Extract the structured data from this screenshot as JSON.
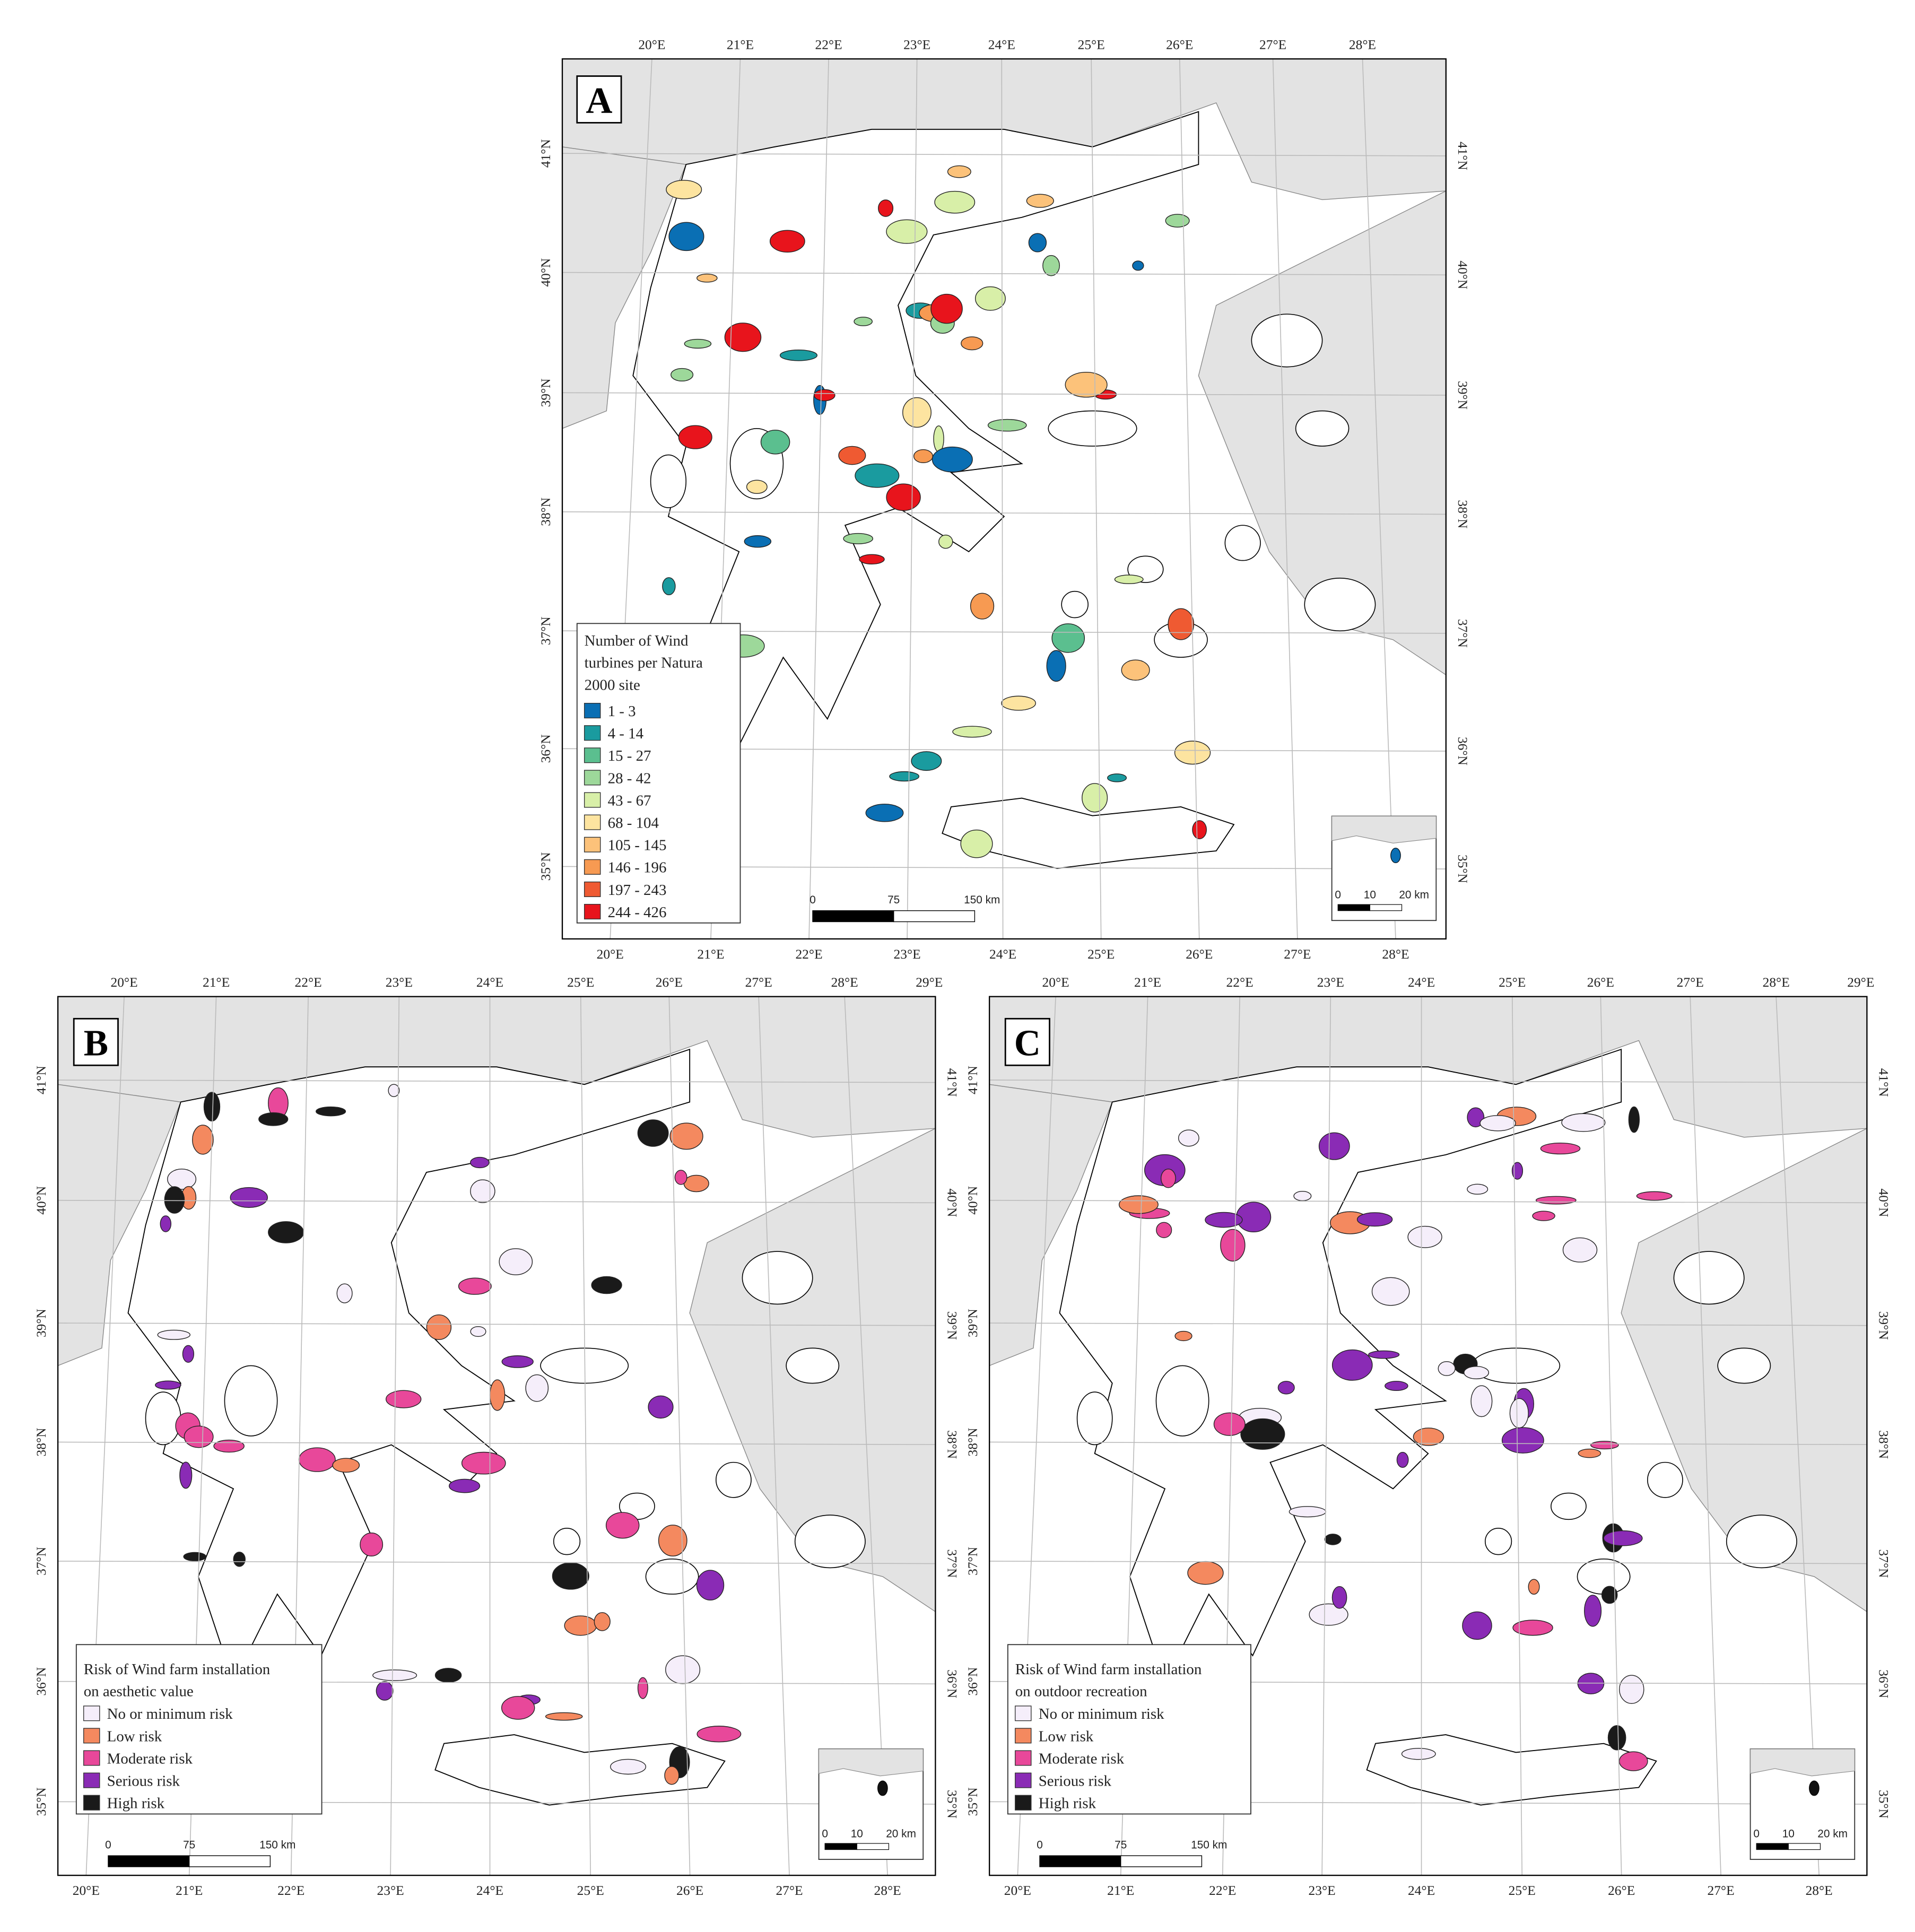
{
  "panels": [
    {
      "letter": "A",
      "top_lon_labels": [
        "20°E",
        "21°E",
        "22°E",
        "23°E",
        "24°E",
        "25°E",
        "26°E",
        "27°E",
        "28°E"
      ],
      "bottom_lon_labels": [
        "20°E",
        "21°E",
        "22°E",
        "23°E",
        "24°E",
        "25°E",
        "26°E",
        "27°E",
        "28°E"
      ],
      "left_lat_labels": [
        "41°N",
        "40°N",
        "39°N",
        "38°N",
        "37°N",
        "36°N",
        "35°N"
      ],
      "right_lat_labels": [
        "41°N",
        "40°N",
        "39°N",
        "38°N",
        "37°N",
        "36°N",
        "35°N"
      ],
      "legend": {
        "title_lines": [
          "Number of Wind",
          "turbines per Natura",
          "2000 site"
        ],
        "items": [
          {
            "label": "1 - 3",
            "color": "#0a6fb4"
          },
          {
            "label": "4 - 14",
            "color": "#1a9b9f"
          },
          {
            "label": "15 - 27",
            "color": "#5bbf8f"
          },
          {
            "label": "28 - 42",
            "color": "#9dd89a"
          },
          {
            "label": "43 - 67",
            "color": "#d8efa8"
          },
          {
            "label": "68 - 104",
            "color": "#fde4a0"
          },
          {
            "label": "105 - 145",
            "color": "#fcc27a"
          },
          {
            "label": "146 - 196",
            "color": "#f79a52"
          },
          {
            "label": "197 - 243",
            "color": "#ef5a32"
          },
          {
            "label": "244 - 426",
            "color": "#e8141c"
          }
        ]
      },
      "scale_bar": [
        "0",
        "75",
        "150 km"
      ],
      "inset_scale_bar": [
        "0",
        "10",
        "20 km"
      ]
    },
    {
      "letter": "B",
      "top_lon_labels": [
        "20°E",
        "21°E",
        "22°E",
        "23°E",
        "24°E",
        "25°E",
        "26°E",
        "27°E",
        "28°E",
        "29°E"
      ],
      "bottom_lon_labels": [
        "20°E",
        "21°E",
        "22°E",
        "23°E",
        "24°E",
        "25°E",
        "26°E",
        "27°E",
        "28°E"
      ],
      "left_lat_labels": [
        "41°N",
        "40°N",
        "39°N",
        "38°N",
        "37°N",
        "36°N",
        "35°N"
      ],
      "right_lat_labels": [
        "41°N",
        "40°N",
        "39°N",
        "38°N",
        "37°N",
        "36°N",
        "35°N"
      ],
      "legend": {
        "title_lines": [
          "Risk of Wind farm installation",
          "on aesthetic value"
        ],
        "items": [
          {
            "label": "No or minimum risk",
            "color": "#f5eefa"
          },
          {
            "label": "Low risk",
            "color": "#f4895f"
          },
          {
            "label": "Moderate risk",
            "color": "#e8489a"
          },
          {
            "label": "Serious risk",
            "color": "#8a2bb5"
          },
          {
            "label": "High risk",
            "color": "#1a1a1a"
          }
        ]
      },
      "scale_bar": [
        "0",
        "75",
        "150 km"
      ],
      "inset_scale_bar": [
        "0",
        "10",
        "20 km"
      ]
    },
    {
      "letter": "C",
      "top_lon_labels": [
        "20°E",
        "21°E",
        "22°E",
        "23°E",
        "24°E",
        "25°E",
        "26°E",
        "27°E",
        "28°E",
        "29°E"
      ],
      "bottom_lon_labels": [
        "20°E",
        "21°E",
        "22°E",
        "23°E",
        "24°E",
        "25°E",
        "26°E",
        "27°E",
        "28°E"
      ],
      "left_lat_labels": [
        "41°N",
        "40°N",
        "39°N",
        "38°N",
        "37°N",
        "36°N",
        "35°N"
      ],
      "right_lat_labels": [
        "41°N",
        "40°N",
        "39°N",
        "38°N",
        "37°N",
        "36°N",
        "35°N"
      ],
      "legend": {
        "title_lines": [
          "Risk of Wind farm installation",
          "on outdoor recreation"
        ],
        "items": [
          {
            "label": "No or minimum risk",
            "color": "#f5eefa"
          },
          {
            "label": "Low risk",
            "color": "#f4895f"
          },
          {
            "label": "Moderate risk",
            "color": "#e8489a"
          },
          {
            "label": "Serious risk",
            "color": "#8a2bb5"
          },
          {
            "label": "High risk",
            "color": "#1a1a1a"
          }
        ]
      },
      "scale_bar": [
        "0",
        "75",
        "150 km"
      ],
      "inset_scale_bar": [
        "0",
        "10",
        "20 km"
      ]
    }
  ]
}
